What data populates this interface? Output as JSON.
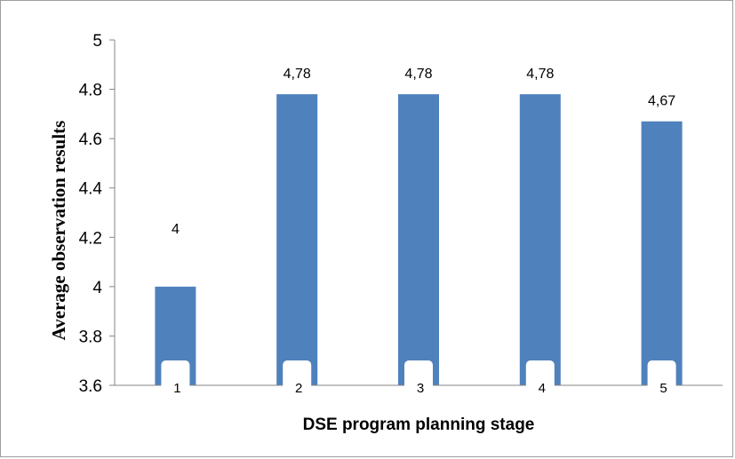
{
  "chart_data": {
    "type": "bar",
    "title": "",
    "xlabel": "DSE program planning stage",
    "ylabel": "Average observation results",
    "categories": [
      "1",
      "2",
      "3",
      "4",
      "5"
    ],
    "values": [
      4,
      4.78,
      4.78,
      4.78,
      4.67
    ],
    "data_labels": [
      "4",
      "4,78",
      "4,78",
      "4,78",
      "4,67"
    ],
    "yticks": [
      "3.6",
      "3.8",
      "4",
      "4.2",
      "4.4",
      "4.6",
      "4.8",
      "5"
    ],
    "ylim": [
      3.6,
      5
    ],
    "grid": false,
    "legend": "none",
    "bar_color": "#4f81bd"
  }
}
